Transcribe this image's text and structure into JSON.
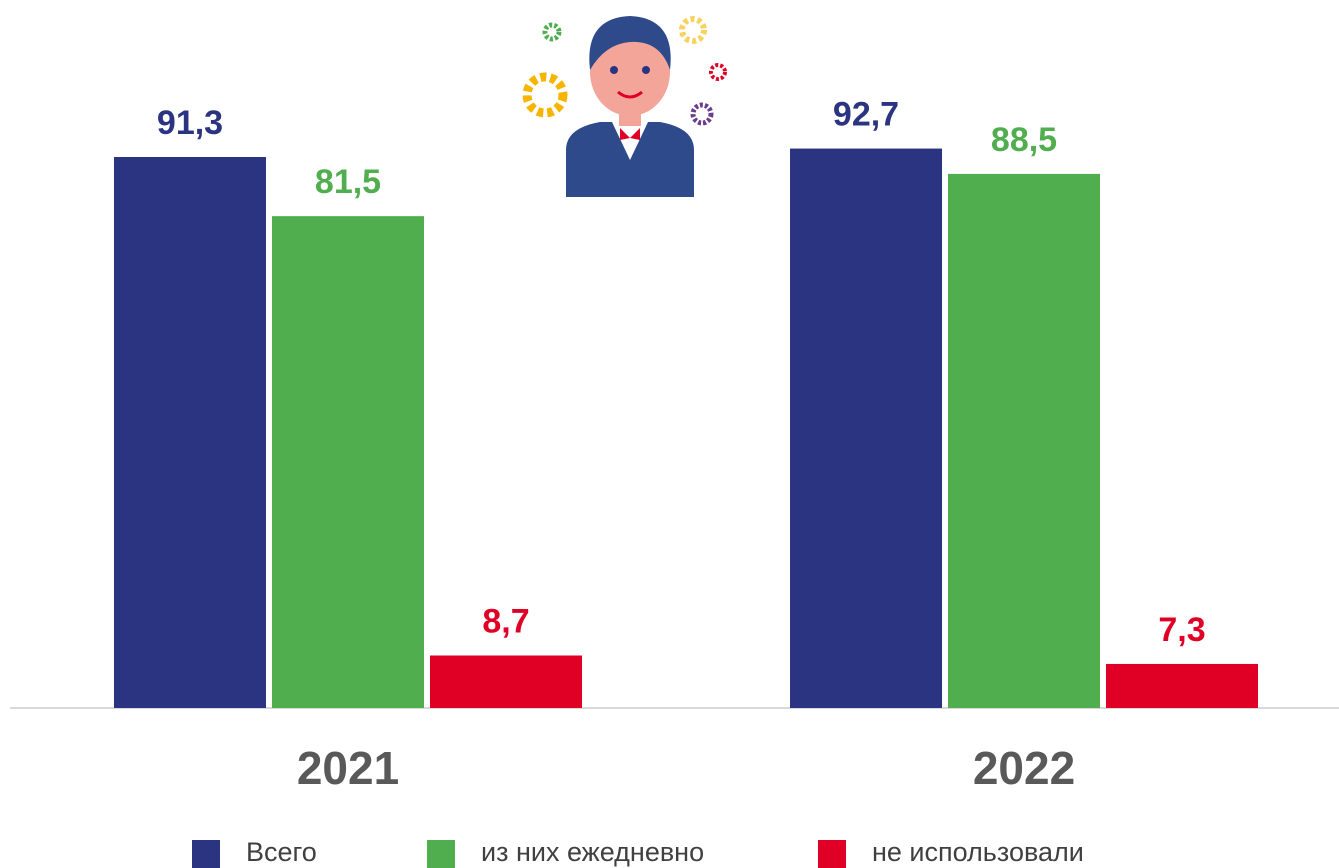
{
  "chart_data": {
    "type": "bar",
    "categories": [
      "2021",
      "2022"
    ],
    "series": [
      {
        "name": "Всего",
        "color": "#2b3480",
        "values": [
          91.3,
          92.7
        ],
        "value_labels": [
          "91,3",
          "92,7"
        ]
      },
      {
        "name": "из них ежедневно",
        "color": "#50ae4f",
        "values": [
          81.5,
          88.5
        ],
        "value_labels": [
          "81,5",
          "88,5"
        ]
      },
      {
        "name": "не использовали",
        "color": "#e00025",
        "values": [
          8.7,
          7.3
        ],
        "value_labels": [
          "8,7",
          "7,3"
        ]
      }
    ]
  }
}
